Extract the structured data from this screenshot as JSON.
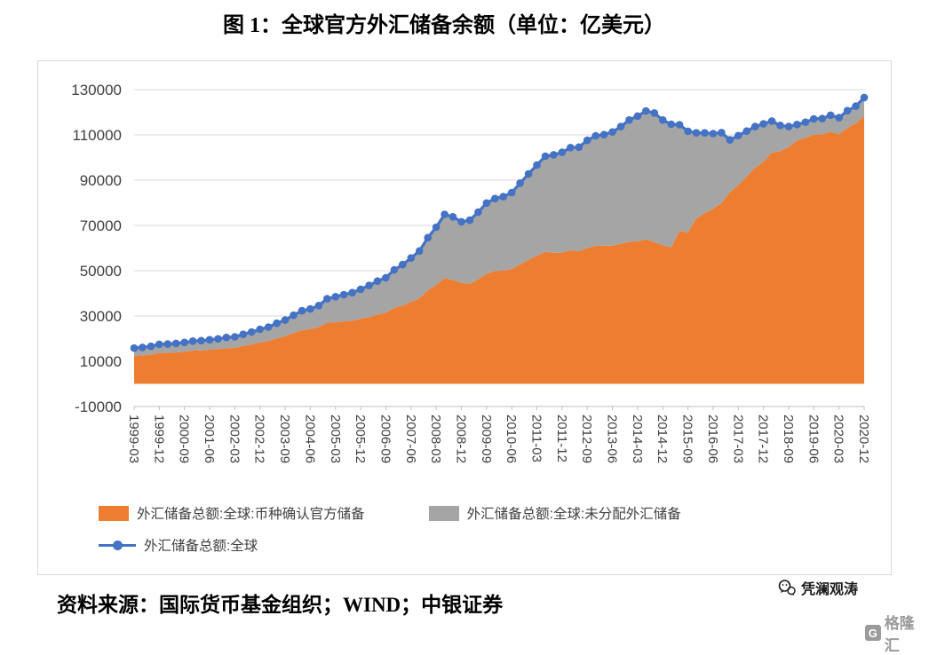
{
  "footer": {
    "source": "资料来源：国际货币基金组织；WIND；中银证券",
    "watermark": "凭澜观涛",
    "logo_text": "格隆汇",
    "logo_icon": "G"
  },
  "colors": {
    "allocated": "#ED7D31",
    "unallocated": "#A5A5A5",
    "total_line": "#4472C4",
    "gridline": "#D9D9D9",
    "axis": "#BFBFBF",
    "tick_text": "#404040"
  },
  "chart_data": {
    "type": "area",
    "title": "图 1：全球官方外汇储备余额（单位：亿美元）",
    "xlabel": "",
    "ylabel": "",
    "ylim": [
      -10000,
      130000
    ],
    "y_ticks": [
      -10000,
      10000,
      30000,
      50000,
      70000,
      90000,
      110000,
      130000
    ],
    "x_tick_step": 3,
    "grid": "horizontal",
    "legend_position": "bottom",
    "x": [
      "1999-03",
      "1999-06",
      "1999-09",
      "1999-12",
      "2000-03",
      "2000-06",
      "2000-09",
      "2000-12",
      "2001-03",
      "2001-06",
      "2001-09",
      "2001-12",
      "2002-03",
      "2002-06",
      "2002-09",
      "2002-12",
      "2003-03",
      "2003-06",
      "2003-09",
      "2003-12",
      "2004-03",
      "2004-06",
      "2004-09",
      "2004-12",
      "2005-03",
      "2005-06",
      "2005-09",
      "2005-12",
      "2006-03",
      "2006-06",
      "2006-09",
      "2006-12",
      "2007-03",
      "2007-06",
      "2007-09",
      "2007-12",
      "2008-03",
      "2008-06",
      "2008-09",
      "2008-12",
      "2009-03",
      "2009-06",
      "2009-09",
      "2009-12",
      "2010-03",
      "2010-06",
      "2010-09",
      "2010-12",
      "2011-03",
      "2011-06",
      "2011-09",
      "2011-12",
      "2012-03",
      "2012-06",
      "2012-09",
      "2012-12",
      "2013-03",
      "2013-06",
      "2013-09",
      "2013-12",
      "2014-03",
      "2014-06",
      "2014-09",
      "2014-12",
      "2015-03",
      "2015-06",
      "2015-09",
      "2015-12",
      "2016-03",
      "2016-06",
      "2016-09",
      "2016-12",
      "2017-03",
      "2017-06",
      "2017-09",
      "2017-12",
      "2018-03",
      "2018-06",
      "2018-09",
      "2018-12",
      "2019-03",
      "2019-06",
      "2019-09",
      "2019-12",
      "2020-03",
      "2020-06",
      "2020-09",
      "2020-12"
    ],
    "series": [
      {
        "name": "外汇储备总额:全球:币种确认官方储备",
        "type": "area",
        "color": "#ED7D31",
        "values": [
          12400,
          12600,
          12900,
          13700,
          13700,
          13900,
          14200,
          14700,
          14800,
          15100,
          15400,
          15800,
          15900,
          16700,
          17400,
          18300,
          19000,
          20100,
          21000,
          22500,
          23700,
          24200,
          25100,
          27000,
          27200,
          27600,
          27900,
          28700,
          29500,
          30600,
          31400,
          33600,
          34600,
          36200,
          37800,
          41300,
          43700,
          46800,
          45900,
          44600,
          44200,
          46200,
          48600,
          49900,
          50000,
          50800,
          52700,
          54800,
          56600,
          58400,
          57900,
          58000,
          59000,
          58600,
          60000,
          61000,
          61100,
          61100,
          61900,
          62800,
          63000,
          63800,
          62600,
          61300,
          60300,
          67600,
          66900,
          73100,
          75400,
          77400,
          79900,
          84700,
          87800,
          91600,
          95500,
          98100,
          102200,
          102800,
          104600,
          107500,
          108700,
          110100,
          110200,
          111500,
          110200,
          113100,
          115100,
          118300
        ]
      },
      {
        "name": "外汇储备总额:全球:未分配外汇储备",
        "type": "area-stacked",
        "color": "#A5A5A5",
        "values": [
          3400,
          3500,
          3700,
          3800,
          3900,
          4000,
          4100,
          4200,
          4300,
          4400,
          4500,
          4700,
          4900,
          5200,
          5500,
          5800,
          6100,
          6700,
          7200,
          7800,
          8600,
          8900,
          9500,
          10600,
          11300,
          11800,
          12400,
          13100,
          14000,
          14800,
          15500,
          16800,
          18100,
          19400,
          20900,
          23300,
          25500,
          28100,
          27900,
          27000,
          28100,
          29700,
          31300,
          32000,
          32700,
          33700,
          36000,
          38000,
          40100,
          42200,
          43300,
          44300,
          45400,
          46000,
          47600,
          48600,
          49000,
          50200,
          51800,
          53800,
          55300,
          56800,
          57100,
          55300,
          54400,
          46900,
          44700,
          37800,
          35500,
          33200,
          31100,
          23100,
          21900,
          20100,
          18200,
          16800,
          13900,
          11400,
          9100,
          7100,
          6900,
          7000,
          7000,
          7200,
          7400,
          7600,
          7600,
          8200
        ]
      },
      {
        "name": "外汇储备总额:全球",
        "type": "line-marker",
        "color": "#4472C4",
        "values": [
          15800,
          16100,
          16600,
          17500,
          17600,
          17900,
          18300,
          18900,
          19100,
          19500,
          19900,
          20500,
          20800,
          21900,
          22900,
          24100,
          25100,
          26800,
          28200,
          30300,
          32300,
          33100,
          34600,
          37600,
          38500,
          39400,
          40300,
          41800,
          43500,
          45400,
          46900,
          50400,
          52700,
          55600,
          58700,
          64600,
          69200,
          74900,
          73800,
          71600,
          72300,
          75900,
          79900,
          81900,
          82700,
          84500,
          88700,
          92800,
          96700,
          100600,
          101200,
          102300,
          104400,
          104600,
          107600,
          109600,
          110100,
          111300,
          113700,
          116600,
          118300,
          120600,
          119700,
          116600,
          114700,
          114500,
          111600,
          110900,
          110900,
          110600,
          111000,
          107800,
          109700,
          111700,
          113700,
          114900,
          116100,
          114200,
          113700,
          114600,
          115600,
          117100,
          117200,
          118700,
          117600,
          120700,
          122700,
          126500
        ]
      }
    ]
  }
}
